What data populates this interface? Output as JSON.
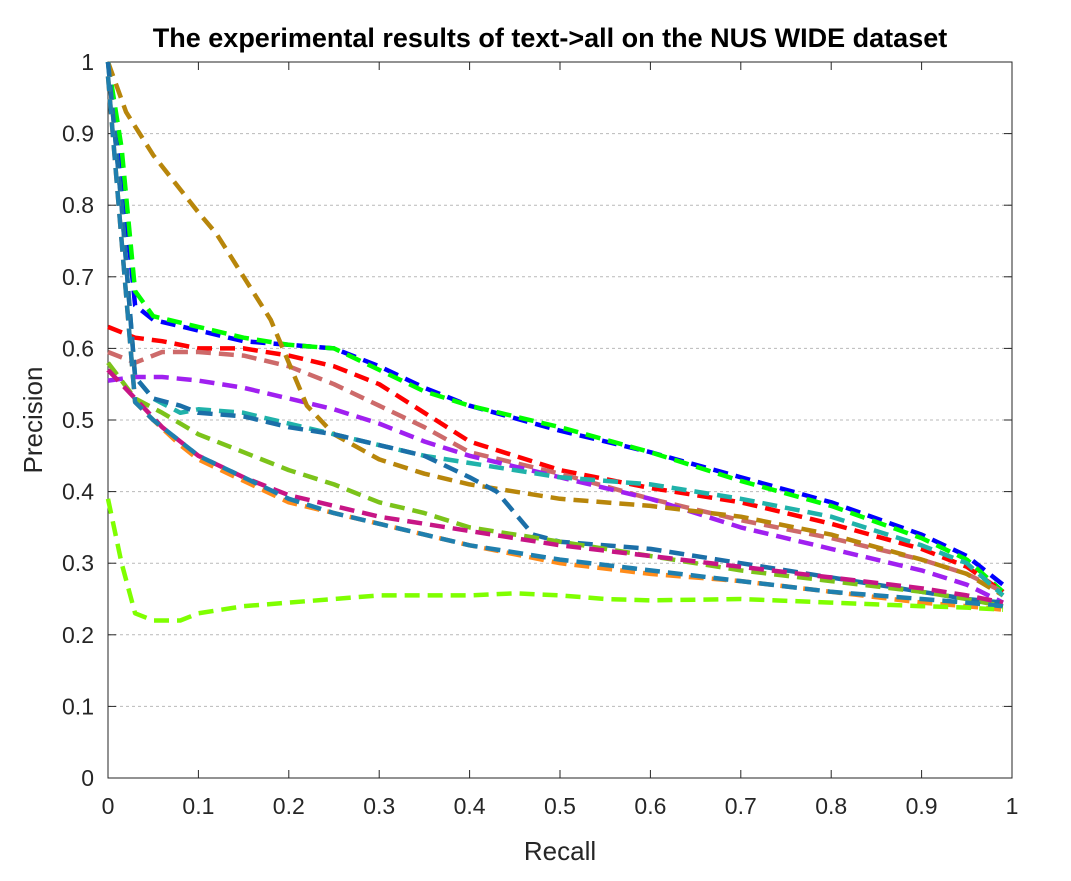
{
  "chart_data": {
    "type": "line",
    "title": "The experimental results of text->all on the NUS WIDE dataset",
    "xlabel": "Recall",
    "ylabel": "Precision",
    "xlim": [
      0,
      1
    ],
    "ylim": [
      0,
      1
    ],
    "xticks": [
      "0",
      "0.1",
      "0.2",
      "0.3",
      "0.4",
      "0.5",
      "0.6",
      "0.7",
      "0.8",
      "0.9",
      "1"
    ],
    "yticks": [
      "0",
      "0.1",
      "0.2",
      "0.3",
      "0.4",
      "0.5",
      "0.6",
      "0.7",
      "0.8",
      "0.9",
      "1"
    ],
    "grid": "horizontal dotted",
    "legend": "none",
    "series": [
      {
        "color": "#0000ff",
        "x": [
          0,
          0.015,
          0.03,
          0.05,
          0.1,
          0.15,
          0.2,
          0.25,
          0.3,
          0.35,
          0.4,
          0.5,
          0.6,
          0.7,
          0.8,
          0.9,
          0.95,
          0.99
        ],
        "y": [
          1.0,
          0.85,
          0.66,
          0.64,
          0.625,
          0.61,
          0.605,
          0.6,
          0.575,
          0.545,
          0.52,
          0.485,
          0.455,
          0.42,
          0.385,
          0.34,
          0.31,
          0.27
        ]
      },
      {
        "color": "#00ff00",
        "x": [
          0,
          0.015,
          0.03,
          0.05,
          0.1,
          0.15,
          0.2,
          0.25,
          0.3,
          0.35,
          0.4,
          0.5,
          0.6,
          0.7,
          0.8,
          0.9,
          0.95,
          0.99
        ],
        "y": [
          1.0,
          0.88,
          0.68,
          0.645,
          0.63,
          0.615,
          0.605,
          0.6,
          0.57,
          0.54,
          0.52,
          0.49,
          0.455,
          0.415,
          0.38,
          0.335,
          0.305,
          0.26
        ]
      },
      {
        "color": "#ff0000",
        "x": [
          0,
          0.03,
          0.06,
          0.1,
          0.15,
          0.2,
          0.25,
          0.3,
          0.35,
          0.4,
          0.5,
          0.6,
          0.7,
          0.8,
          0.9,
          0.95,
          0.99
        ],
        "y": [
          0.63,
          0.615,
          0.61,
          0.6,
          0.6,
          0.59,
          0.575,
          0.55,
          0.51,
          0.47,
          0.43,
          0.405,
          0.385,
          0.355,
          0.32,
          0.295,
          0.26
        ]
      },
      {
        "color": "#cd6a6a",
        "x": [
          0,
          0.03,
          0.06,
          0.1,
          0.15,
          0.2,
          0.25,
          0.3,
          0.35,
          0.4,
          0.5,
          0.6,
          0.7,
          0.8,
          0.9,
          0.95,
          0.99
        ],
        "y": [
          0.595,
          0.58,
          0.595,
          0.595,
          0.59,
          0.575,
          0.55,
          0.52,
          0.49,
          0.455,
          0.425,
          0.39,
          0.36,
          0.335,
          0.305,
          0.285,
          0.26
        ]
      },
      {
        "color": "#a020f0",
        "x": [
          0,
          0.03,
          0.06,
          0.1,
          0.15,
          0.2,
          0.25,
          0.3,
          0.35,
          0.4,
          0.5,
          0.6,
          0.7,
          0.8,
          0.9,
          0.95,
          0.99
        ],
        "y": [
          0.555,
          0.56,
          0.56,
          0.555,
          0.545,
          0.53,
          0.515,
          0.495,
          0.47,
          0.45,
          0.42,
          0.39,
          0.35,
          0.32,
          0.29,
          0.27,
          0.245
        ]
      },
      {
        "color": "#b8860b",
        "x": [
          0,
          0.02,
          0.05,
          0.1,
          0.12,
          0.15,
          0.18,
          0.2,
          0.22,
          0.25,
          0.3,
          0.35,
          0.4,
          0.5,
          0.6,
          0.7,
          0.8,
          0.9,
          0.95,
          0.99
        ],
        "y": [
          1.0,
          0.93,
          0.87,
          0.79,
          0.76,
          0.7,
          0.64,
          0.58,
          0.52,
          0.48,
          0.445,
          0.425,
          0.41,
          0.39,
          0.38,
          0.365,
          0.34,
          0.305,
          0.285,
          0.255
        ]
      },
      {
        "color": "#20b2aa",
        "x": [
          0,
          0.015,
          0.03,
          0.05,
          0.08,
          0.1,
          0.15,
          0.2,
          0.25,
          0.3,
          0.35,
          0.4,
          0.5,
          0.6,
          0.7,
          0.8,
          0.9,
          0.95,
          0.99
        ],
        "y": [
          1.0,
          0.8,
          0.56,
          0.53,
          0.51,
          0.515,
          0.51,
          0.495,
          0.48,
          0.465,
          0.45,
          0.44,
          0.42,
          0.41,
          0.39,
          0.365,
          0.325,
          0.3,
          0.255
        ]
      },
      {
        "color": "#1b6fa8",
        "x": [
          0,
          0.015,
          0.03,
          0.05,
          0.08,
          0.1,
          0.15,
          0.2,
          0.25,
          0.3,
          0.35,
          0.4,
          0.43,
          0.47,
          0.5,
          0.6,
          0.7,
          0.8,
          0.9,
          0.95,
          0.99
        ],
        "y": [
          1.0,
          0.8,
          0.56,
          0.53,
          0.52,
          0.51,
          0.505,
          0.49,
          0.48,
          0.465,
          0.45,
          0.42,
          0.4,
          0.34,
          0.33,
          0.32,
          0.3,
          0.28,
          0.26,
          0.25,
          0.245
        ]
      },
      {
        "color": "#7cc31a",
        "x": [
          0,
          0.03,
          0.06,
          0.1,
          0.15,
          0.2,
          0.25,
          0.3,
          0.35,
          0.4,
          0.5,
          0.6,
          0.7,
          0.8,
          0.9,
          0.95,
          0.99
        ],
        "y": [
          0.58,
          0.53,
          0.51,
          0.48,
          0.455,
          0.43,
          0.41,
          0.385,
          0.37,
          0.35,
          0.33,
          0.31,
          0.29,
          0.275,
          0.26,
          0.25,
          0.24
        ]
      },
      {
        "color": "#c71585",
        "x": [
          0,
          0.03,
          0.06,
          0.1,
          0.15,
          0.2,
          0.25,
          0.3,
          0.35,
          0.4,
          0.5,
          0.6,
          0.7,
          0.8,
          0.9,
          0.95,
          0.99
        ],
        "y": [
          0.57,
          0.53,
          0.49,
          0.45,
          0.42,
          0.395,
          0.38,
          0.365,
          0.355,
          0.345,
          0.325,
          0.31,
          0.295,
          0.28,
          0.265,
          0.255,
          0.245
        ]
      },
      {
        "color": "#ff8c1a",
        "x": [
          0,
          0.015,
          0.03,
          0.05,
          0.08,
          0.1,
          0.15,
          0.2,
          0.25,
          0.3,
          0.35,
          0.4,
          0.5,
          0.6,
          0.7,
          0.8,
          0.9,
          0.95,
          0.99
        ],
        "y": [
          0.98,
          0.75,
          0.525,
          0.5,
          0.465,
          0.445,
          0.415,
          0.385,
          0.37,
          0.355,
          0.34,
          0.325,
          0.3,
          0.285,
          0.275,
          0.26,
          0.245,
          0.24,
          0.235
        ]
      },
      {
        "color": "#1f7fae",
        "x": [
          0,
          0.015,
          0.03,
          0.05,
          0.08,
          0.1,
          0.15,
          0.2,
          0.25,
          0.3,
          0.35,
          0.4,
          0.5,
          0.6,
          0.7,
          0.8,
          0.9,
          0.95,
          0.99
        ],
        "y": [
          0.98,
          0.75,
          0.525,
          0.5,
          0.47,
          0.45,
          0.42,
          0.39,
          0.37,
          0.355,
          0.34,
          0.325,
          0.305,
          0.29,
          0.275,
          0.26,
          0.25,
          0.245,
          0.24
        ]
      },
      {
        "color": "#7fff00",
        "x": [
          0,
          0.015,
          0.03,
          0.05,
          0.08,
          0.1,
          0.15,
          0.2,
          0.25,
          0.3,
          0.35,
          0.4,
          0.45,
          0.5,
          0.55,
          0.6,
          0.7,
          0.8,
          0.9,
          0.95,
          0.99
        ],
        "y": [
          0.39,
          0.3,
          0.23,
          0.22,
          0.22,
          0.23,
          0.24,
          0.245,
          0.25,
          0.255,
          0.255,
          0.255,
          0.258,
          0.255,
          0.25,
          0.248,
          0.25,
          0.245,
          0.24,
          0.238,
          0.235
        ]
      }
    ]
  }
}
